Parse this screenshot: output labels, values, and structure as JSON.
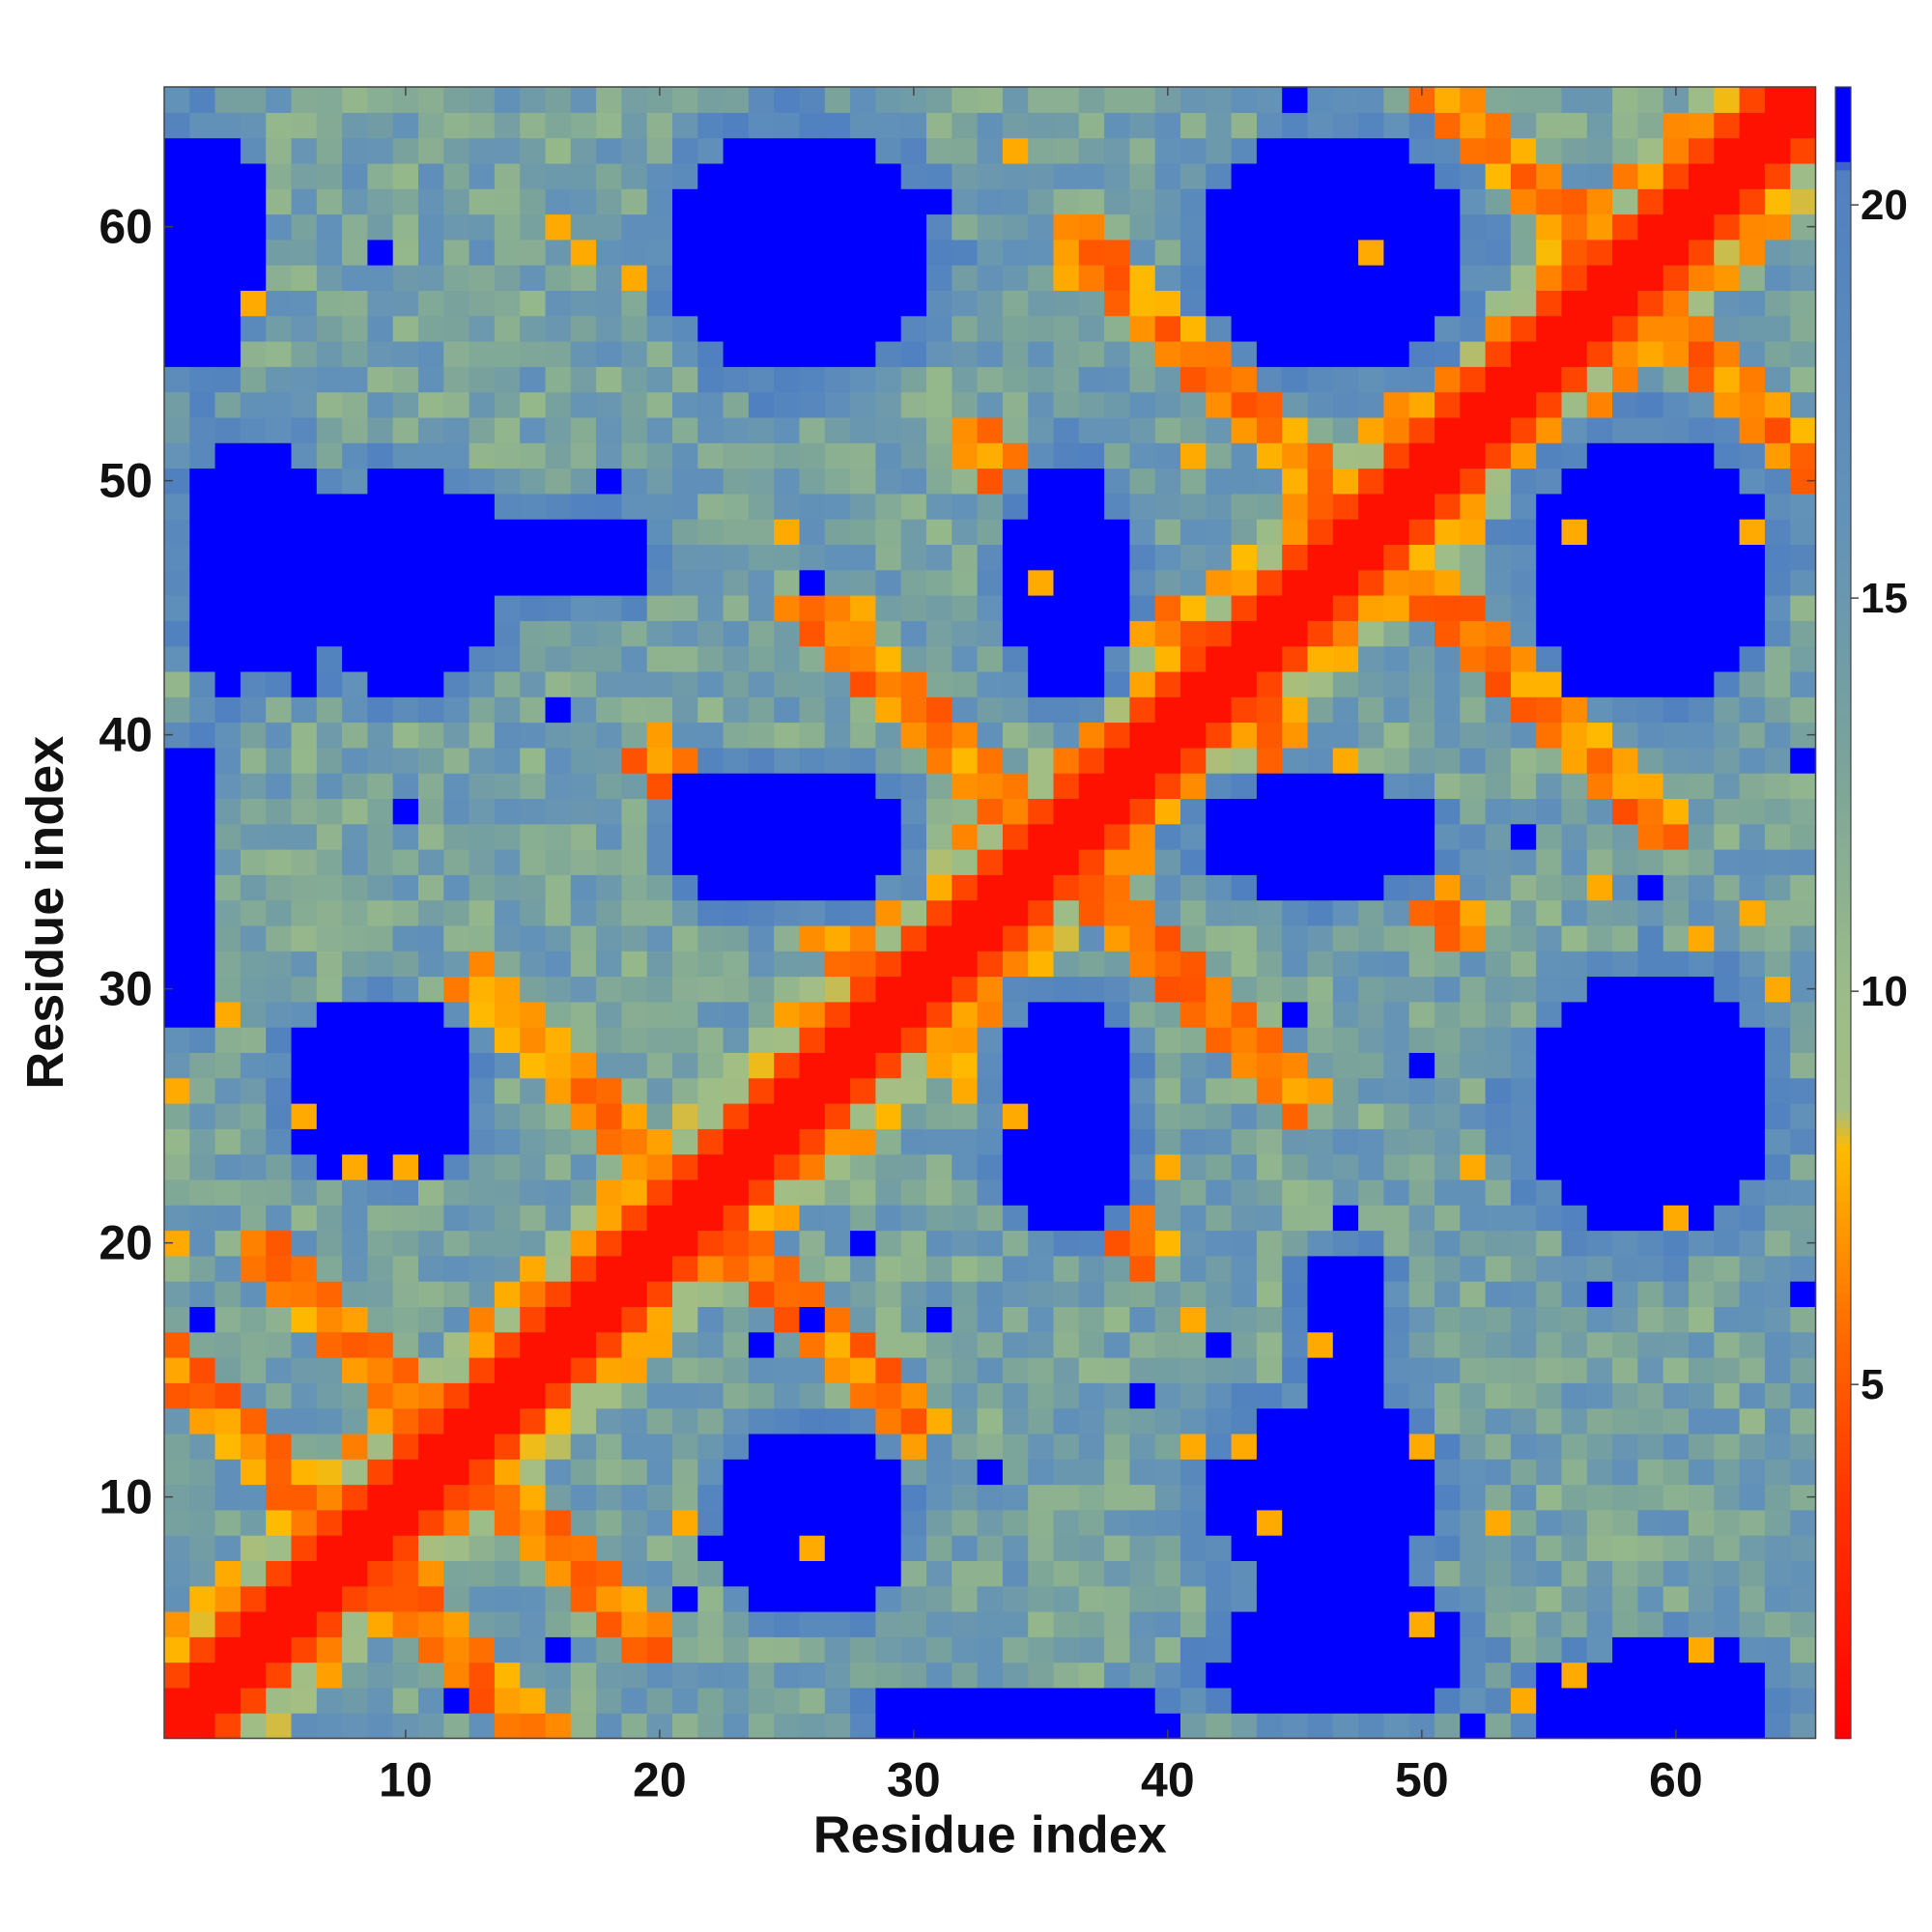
{
  "chart_data": {
    "type": "heatmap",
    "title": "",
    "xlabel": "Residue index",
    "ylabel": "Residue index",
    "n": 65,
    "xlim": [
      1,
      65
    ],
    "ylim": [
      1,
      65
    ],
    "x_ticks": [
      10,
      20,
      30,
      40,
      50,
      60
    ],
    "y_ticks": [
      10,
      20,
      30,
      40,
      50,
      60
    ],
    "colorbar": {
      "ticks": [
        5,
        10,
        15,
        20
      ],
      "range": [
        0.5,
        21.5
      ],
      "stops": [
        {
          "v": 0.5,
          "color": "#ff0000"
        },
        {
          "v": 3.5,
          "color": "#ff3300"
        },
        {
          "v": 5.5,
          "color": "#ff6600"
        },
        {
          "v": 7.0,
          "color": "#ff9900"
        },
        {
          "v": 8.0,
          "color": "#ffbb00"
        },
        {
          "v": 8.5,
          "color": "#a4be84"
        },
        {
          "v": 10.0,
          "color": "#9bbc88"
        },
        {
          "v": 13.0,
          "color": "#7aa39b"
        },
        {
          "v": 16.0,
          "color": "#6392b8"
        },
        {
          "v": 20.5,
          "color": "#5080c0"
        },
        {
          "v": 20.51,
          "color": "#0000ff"
        },
        {
          "v": 21.5,
          "color": "#0000ff"
        }
      ]
    },
    "structure": {
      "diagonal_width": 2,
      "helix_contact_bands": [
        [
          1,
          1,
          25
        ],
        [
          4,
          4,
          25
        ],
        [
          1,
          27,
          38
        ],
        [
          4,
          27,
          38
        ],
        [
          1,
          38,
          65
        ],
        [
          4,
          38,
          65
        ]
      ],
      "sheet_contacts_antiparallel": [
        [
          16,
          16,
          8
        ],
        [
          24,
          24,
          6
        ],
        [
          43,
          43,
          7
        ],
        [
          59,
          59,
          8
        ],
        [
          71,
          71,
          8
        ],
        [
          84,
          84,
          8
        ],
        [
          96,
          96,
          10
        ],
        [
          116,
          116,
          10
        ]
      ],
      "sheet_contacts_parallel": [
        [
          -9,
          1,
          22
        ],
        [
          -7,
          3,
          20
        ]
      ],
      "far_regions": [
        {
          "cx": 26.5,
          "cy": 59,
          "rx": 4.5,
          "ry": 4.5
        },
        {
          "cx": 46,
          "cy": 59,
          "rx": 4.5,
          "ry": 4.5
        },
        {
          "cx": 4,
          "cy": 47,
          "rx": 3,
          "ry": 5
        },
        {
          "cx": 10,
          "cy": 47,
          "rx": 5,
          "ry": 3
        },
        {
          "cx": 17,
          "cy": 47,
          "rx": 3,
          "ry": 2
        },
        {
          "cx": 36,
          "cy": 46,
          "rx": 2.5,
          "ry": 5
        },
        {
          "cx": 59,
          "cy": 47,
          "rx": 5,
          "ry": 5
        },
        {
          "cx": 26,
          "cy": 36,
          "rx": 4,
          "ry": 3
        },
        {
          "cx": 46,
          "cy": 36,
          "rx": 4,
          "ry": 2
        },
        {
          "cx": 9,
          "cy": 26,
          "rx": 4,
          "ry": 3
        },
        {
          "cx": 36,
          "cy": 25,
          "rx": 3,
          "ry": 4.5
        },
        {
          "cx": 59,
          "cy": 25,
          "rx": 5,
          "ry": 5
        },
        {
          "cx": 26,
          "cy": 9,
          "rx": 3.5,
          "ry": 4
        },
        {
          "cx": 46,
          "cy": 10,
          "rx": 4.5,
          "ry": 4
        },
        {
          "cx": 46,
          "cy": 3,
          "rx": 5,
          "ry": 1.5
        },
        {
          "cx": 59,
          "cy": 2,
          "rx": 5,
          "ry": 2
        },
        {
          "cx": 34,
          "cy": 1.5,
          "rx": 6,
          "ry": 1
        },
        {
          "cx": 2,
          "cy": 60,
          "rx": 2.5,
          "ry": 4
        }
      ]
    }
  }
}
